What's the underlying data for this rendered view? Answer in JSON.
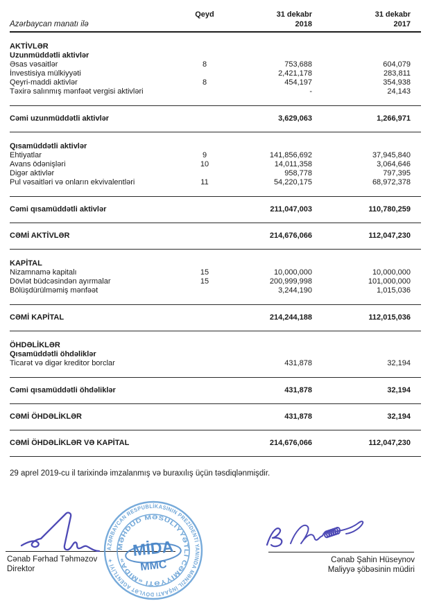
{
  "header": {
    "currency_note": "Azərbaycan manatı ilə",
    "qeyd_label": "Qeyd",
    "col_2018": {
      "line1": "31 dekabr",
      "line2": "2018"
    },
    "col_2017": {
      "line1": "31 dekabr",
      "line2": "2017"
    }
  },
  "table": {
    "rows": [
      {
        "type": "section",
        "label": "AKTİVLƏR"
      },
      {
        "type": "section",
        "label": "Uzunmüddətli aktivlər"
      },
      {
        "type": "item",
        "label": "Əsas vəsaitlər",
        "qeyd": "8",
        "v2018": "753,688",
        "v2017": "604,079"
      },
      {
        "type": "item",
        "label": "İnvestisiya mülkiyyəti",
        "qeyd": "",
        "v2018": "2,421,178",
        "v2017": "283,811"
      },
      {
        "type": "item",
        "label": "Qeyri-maddi aktivlər",
        "qeyd": "8",
        "v2018": "454,197",
        "v2017": "354,938"
      },
      {
        "type": "item",
        "label": "Təxirə salınmış mənfəət vergisi aktivləri",
        "qeyd": "",
        "v2018": "-",
        "v2017": "24,143"
      },
      {
        "type": "total",
        "label": "Cəmi uzunmüddətli aktivlər",
        "qeyd": "",
        "v2018": "3,629,063",
        "v2017": "1,266,971"
      },
      {
        "type": "section",
        "label": "Qısamüddətli aktivlər"
      },
      {
        "type": "item",
        "label": "Ehtiyatlar",
        "qeyd": "9",
        "v2018": "141,856,692",
        "v2017": "37,945,840"
      },
      {
        "type": "item",
        "label": "Avans ödənişləri",
        "qeyd": "10",
        "v2018": "14,011,358",
        "v2017": "3,064,646"
      },
      {
        "type": "item",
        "label": "Digər aktivlər",
        "qeyd": "",
        "v2018": "958,778",
        "v2017": "797,395"
      },
      {
        "type": "item",
        "label": "Pul vəsaitləri və onların ekvivalentləri",
        "qeyd": "11",
        "v2018": "54,220,175",
        "v2017": "68,972,378"
      },
      {
        "type": "total",
        "label": "Cəmi qısamüddətli aktivlər",
        "qeyd": "",
        "v2018": "211,047,003",
        "v2017": "110,780,259"
      },
      {
        "type": "total",
        "label": "CƏMİ AKTİVLƏR",
        "qeyd": "",
        "v2018": "214,676,066",
        "v2017": "112,047,230"
      },
      {
        "type": "section",
        "label": "KAPİTAL"
      },
      {
        "type": "item",
        "label": "Nizamnamə kapitalı",
        "qeyd": "15",
        "v2018": "10,000,000",
        "v2017": "10,000,000"
      },
      {
        "type": "item",
        "label": "Dövlət büdcəsindən ayırmalar",
        "qeyd": "15",
        "v2018": "200,999,998",
        "v2017": "101,000,000"
      },
      {
        "type": "item",
        "label": "Bölüşdürülməmiş mənfəət",
        "qeyd": "",
        "v2018": "3,244,190",
        "v2017": "1,015,036"
      },
      {
        "type": "total",
        "label": "CƏMİ KAPİTAL",
        "qeyd": "",
        "v2018": "214,244,188",
        "v2017": "112,015,036"
      },
      {
        "type": "section",
        "label": "ÖHDƏLİKLƏR"
      },
      {
        "type": "section",
        "label": "Qısamüddətli öhdəliklər"
      },
      {
        "type": "item",
        "label": "Ticarət və digər kreditor borclar",
        "qeyd": "",
        "v2018": "431,878",
        "v2017": "32,194"
      },
      {
        "type": "total",
        "label": "Cəmi qısamüddətli öhdəliklər",
        "qeyd": "",
        "v2018": "431,878",
        "v2017": "32,194"
      },
      {
        "type": "total",
        "label": "CƏMİ ÖHDƏLİKLƏR",
        "qeyd": "",
        "v2018": "431,878",
        "v2017": "32,194"
      },
      {
        "type": "total",
        "label": "CƏMİ ÖHDƏLİKLƏR VƏ KAPİTAL",
        "qeyd": "",
        "v2018": "214,676,066",
        "v2017": "112,047,230"
      }
    ]
  },
  "footer": {
    "approval_note": "29 aprel 2019-cu il tarixində imzalanmış və buraxılış üçün təsdiqlənmişdir."
  },
  "signatures": {
    "left": {
      "name": "Cənab Fərhad Təhməzov",
      "title": "Direktor"
    },
    "right": {
      "name": "Cənab Şahin Hüseynov",
      "title": "Maliyyə şöbəsinin müdiri"
    }
  },
  "stamp": {
    "outer_text": "AZƏRBAYCAN RESPUBLİKASININ PREZİDENTİ YANINDA MƏNZİL İNŞAATI DÖVLƏT AGENTLİYİ ✦",
    "inner_text": "MƏHDUD MƏSULİYYƏTLİ CƏMİYYƏTİ «MİDA»",
    "center_line1": "MİDA",
    "center_line2": "MMC"
  },
  "colors": {
    "stamp_blue": "#5e9bd3",
    "stamp_center_blue": "#4a86c8",
    "signature_ink": "#4d49b5",
    "rule": "#2a2a2a"
  }
}
